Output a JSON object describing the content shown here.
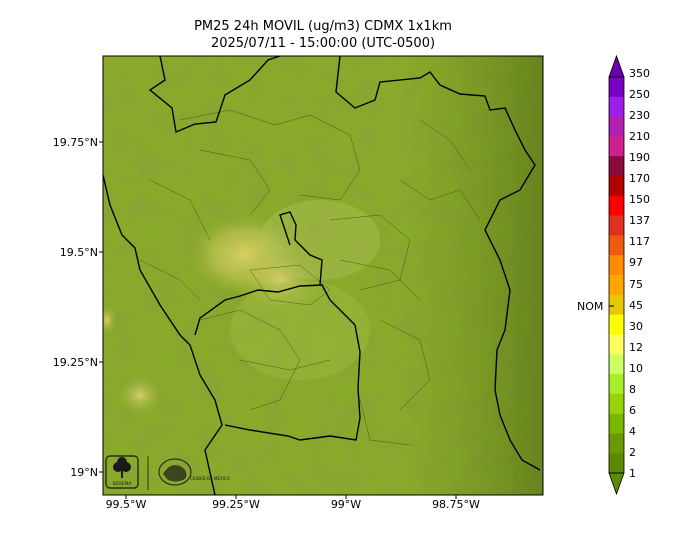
{
  "title_line1": "PM25 24h MOVIL (ug/m3) CDMX 1x1km",
  "title_line2": "2025/07/11 - 15:00:00 (UTC-0500)",
  "lat_labels": [
    "19.75°N",
    "19.5°N",
    "19.25°N",
    "19°N"
  ],
  "lon_labels": [
    "99.5°W",
    "99.25°W",
    "99°W",
    "98.75°W"
  ],
  "colorbar": {
    "levels": [
      "350",
      "250",
      "230",
      "210",
      "190",
      "170",
      "150",
      "137",
      "117",
      "97",
      "75",
      "45",
      "30",
      "12",
      "10",
      "8",
      "6",
      "4",
      "2",
      "1"
    ],
    "colors": [
      "#7a00c8",
      "#9b1fe8",
      "#b21fb2",
      "#d02090",
      "#8b0a3a",
      "#b00000",
      "#ff0000",
      "#e03020",
      "#f05a10",
      "#ff8c00",
      "#ffa500",
      "#e6c800",
      "#ffff00",
      "#ffff60",
      "#ccff60",
      "#a6f02a",
      "#9ad20a",
      "#7ab800",
      "#6a9a00",
      "#5e8a00"
    ],
    "nom_label": "NOM"
  },
  "logos": [
    {
      "name": "sedema-logo",
      "caption": "SEDEMA"
    },
    {
      "name": "cdmx-logo",
      "caption": "CIUDAD DE MÉXICO"
    }
  ]
}
